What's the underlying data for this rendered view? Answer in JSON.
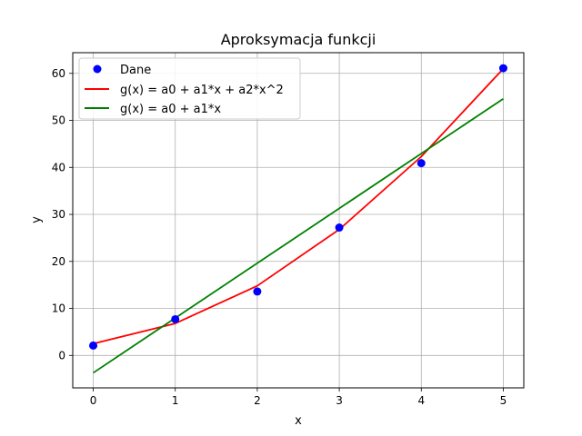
{
  "chart_data": {
    "type": "line",
    "title": "Aproksymacja funkcji",
    "xlabel": "x",
    "ylabel": "y",
    "xlim": [
      -0.25,
      5.25
    ],
    "ylim": [
      -6.9,
      64.4
    ],
    "xticks": [
      0,
      1,
      2,
      3,
      4,
      5
    ],
    "yticks": [
      0,
      10,
      20,
      30,
      40,
      50,
      60
    ],
    "grid": true,
    "legend_position": "top-left",
    "points": {
      "name": "Dane",
      "color": "#0000ff",
      "x": [
        0,
        1,
        2,
        3,
        4,
        5
      ],
      "y": [
        2.1,
        7.7,
        13.6,
        27.2,
        40.9,
        61.1
      ]
    },
    "series": [
      {
        "name": "g(x) = a0 + a1*x + a2*x^2",
        "color": "#ff0000",
        "x": [
          0,
          1,
          2,
          3,
          4,
          5
        ],
        "y": [
          2.5,
          6.8,
          14.8,
          26.8,
          42.3,
          61.0
        ]
      },
      {
        "name": "g(x) = a0 + a1*x",
        "color": "#008000",
        "x": [
          0,
          5
        ],
        "y": [
          -3.7,
          54.6
        ]
      }
    ]
  }
}
